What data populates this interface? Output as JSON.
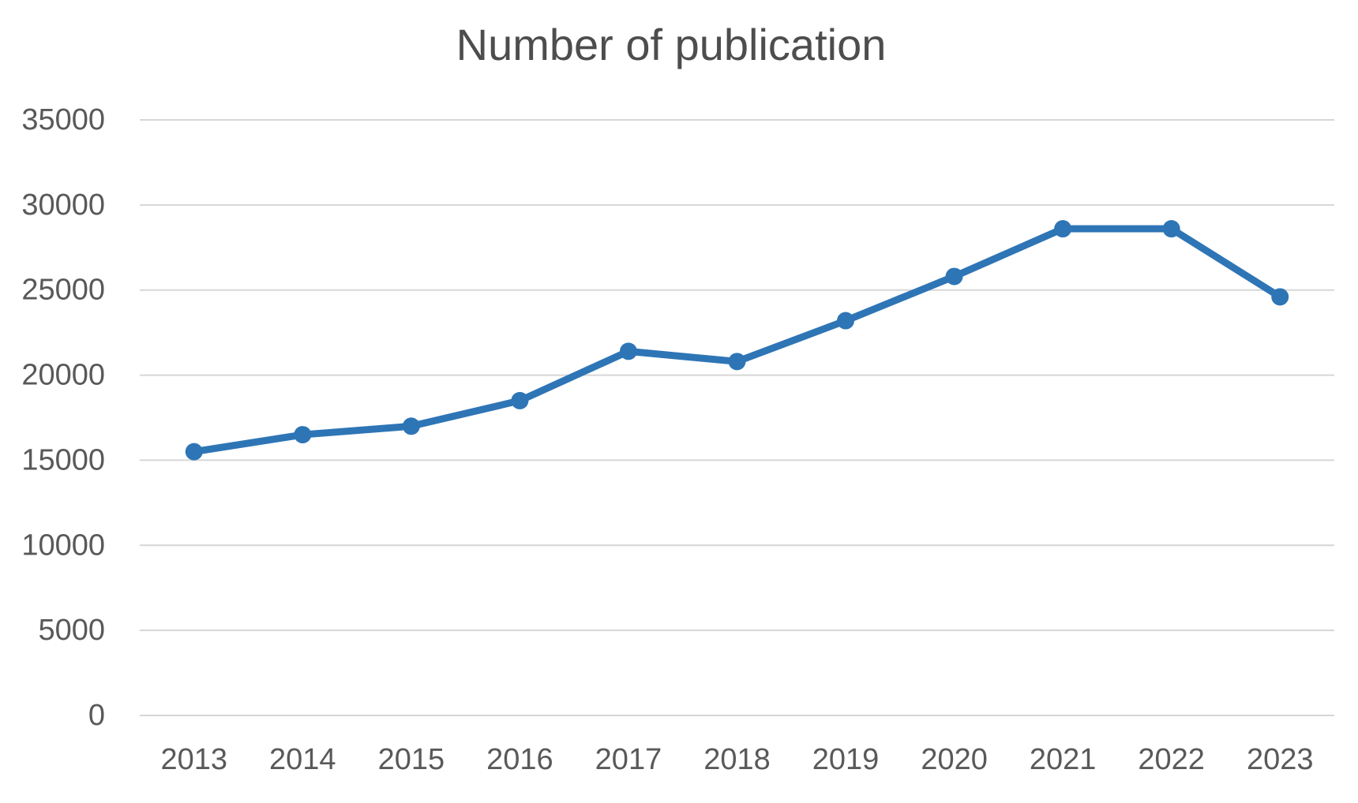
{
  "chart_data": {
    "type": "line",
    "title": "Number of publication",
    "categories": [
      "2013",
      "2014",
      "2015",
      "2016",
      "2017",
      "2018",
      "2019",
      "2020",
      "2021",
      "2022",
      "2023"
    ],
    "series": [
      {
        "name": "Number of publication",
        "values": [
          15500,
          16500,
          17000,
          18500,
          21400,
          20800,
          23200,
          25800,
          28600,
          28600,
          24600
        ]
      }
    ],
    "xlabel": "",
    "ylabel": "",
    "ylim": [
      0,
      35000
    ],
    "ytick_step": 5000,
    "ytick_labels": [
      "0",
      "5000",
      "10000",
      "15000",
      "20000",
      "25000",
      "30000",
      "35000"
    ],
    "grid": true,
    "legend_position": "none",
    "colors": {
      "line": "#2E75B6",
      "marker": "#2E75B6",
      "gridline": "#D6D6D6",
      "tick_label": "#595959",
      "title": "#4D4D4D",
      "background": "#FFFFFF"
    }
  }
}
